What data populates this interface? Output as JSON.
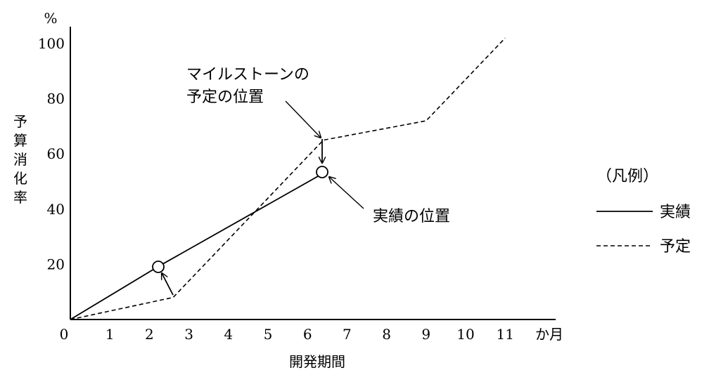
{
  "chart_data": {
    "type": "line",
    "ylabel": "予算消化率",
    "yunit": "%",
    "xlabel": "開発期間",
    "xunit": "か月",
    "xlim": [
      0,
      12.2
    ],
    "ylim": [
      0,
      105
    ],
    "x_ticks": [
      "0",
      "1",
      "2",
      "3",
      "4",
      "5",
      "6",
      "7",
      "8",
      "9",
      "10",
      "11"
    ],
    "y_ticks": [
      "20",
      "40",
      "60",
      "80",
      "100"
    ],
    "series": [
      {
        "name": "実績",
        "style": "solid",
        "x": [
          0,
          2.2,
          6.4
        ],
        "y": [
          0,
          19,
          53
        ]
      },
      {
        "name": "予定",
        "style": "dashed",
        "x": [
          0,
          2.6,
          6.4,
          9,
          11
        ],
        "y": [
          0,
          8,
          65,
          72,
          102
        ]
      }
    ],
    "annotations": {
      "milestone_line1": "マイルストーンの",
      "milestone_line2": "予定の位置",
      "actual": "実績の位置"
    },
    "legend": {
      "title": "（凡例）",
      "position": "right"
    }
  }
}
